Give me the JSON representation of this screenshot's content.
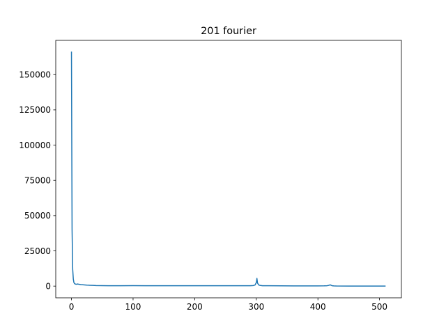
{
  "chart_data": {
    "type": "line",
    "title": "201 fourier",
    "xlabel": "",
    "ylabel": "",
    "xlim": [
      -25.5,
      535.5
    ],
    "ylim": [
      -8300,
      174300
    ],
    "xticks": [
      0,
      100,
      200,
      300,
      400,
      500
    ],
    "yticks": [
      0,
      25000,
      50000,
      75000,
      100000,
      125000,
      150000
    ],
    "xtick_labels": [
      "0",
      "100",
      "200",
      "300",
      "400",
      "500"
    ],
    "ytick_labels": [
      "0",
      "25000",
      "50000",
      "75000",
      "100000",
      "125000",
      "150000"
    ],
    "grid": false,
    "legend": "none",
    "series": [
      {
        "color": "#1f77b4",
        "x": [
          0,
          1,
          2,
          3,
          4,
          5,
          6,
          7,
          8,
          10,
          12,
          15,
          20,
          25,
          30,
          35,
          40,
          50,
          60,
          80,
          100,
          120,
          150,
          180,
          200,
          230,
          260,
          280,
          290,
          295,
          298,
          300,
          301,
          302,
          304,
          306,
          310,
          320,
          340,
          360,
          380,
          400,
          410,
          415,
          418,
          420,
          421,
          423,
          426,
          430,
          450,
          480,
          509
        ],
        "y": [
          166000,
          40000,
          12000,
          5000,
          2500,
          1800,
          1500,
          1400,
          1300,
          1500,
          1300,
          1100,
          900,
          700,
          600,
          500,
          400,
          350,
          300,
          300,
          350,
          300,
          300,
          300,
          300,
          300,
          300,
          250,
          300,
          400,
          800,
          2500,
          5500,
          2200,
          800,
          500,
          300,
          250,
          200,
          150,
          150,
          150,
          200,
          300,
          600,
          900,
          700,
          300,
          150,
          100,
          50,
          0,
          0
        ]
      }
    ]
  }
}
